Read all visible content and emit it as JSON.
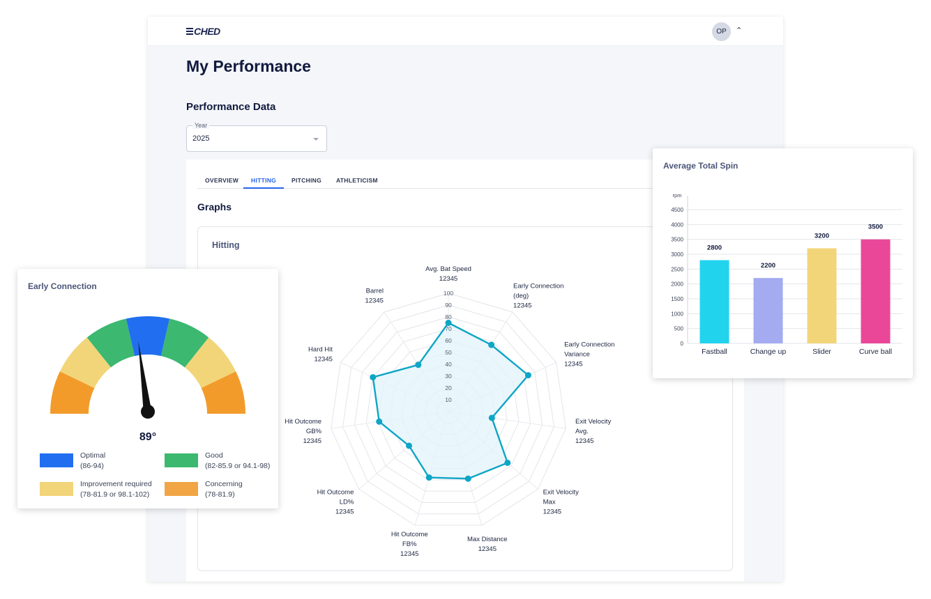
{
  "header": {
    "logo_text": "CHED",
    "avatar_initials": "OP"
  },
  "page": {
    "title": "My Performance",
    "section_title": "Performance Data"
  },
  "year_select": {
    "label": "Year",
    "value": "2025"
  },
  "tabs": [
    {
      "label": "OVERVIEW",
      "active": false
    },
    {
      "label": "HITTING",
      "active": true
    },
    {
      "label": "PITCHING",
      "active": false
    },
    {
      "label": "ATHLETICISM",
      "active": false
    }
  ],
  "graphs": {
    "title": "Graphs",
    "card_title": "Hitting"
  },
  "radar_chart": {
    "chart_data": {
      "type": "radar",
      "title": "Hitting",
      "r_ticks": [
        10,
        20,
        30,
        40,
        50,
        60,
        70,
        80,
        90,
        100
      ],
      "r_range": [
        0,
        100
      ],
      "axes": [
        {
          "label": [
            "Avg. Bat Speed",
            "12345"
          ],
          "value": 75
        },
        {
          "label": [
            "Early Connection",
            "(deg)",
            "12345"
          ],
          "value": 67
        },
        {
          "label": [
            "Early Connection",
            "Variance",
            "12345"
          ],
          "value": 74
        },
        {
          "label": [
            "Exit Velocity",
            "Avg.",
            "12345"
          ],
          "value": 37
        },
        {
          "label": [
            "Exit Velocity",
            "Max",
            "12345"
          ],
          "value": 66
        },
        {
          "label": [
            "Max Distance",
            "12345"
          ],
          "value": 59
        },
        {
          "label": [
            "Hit Outcome",
            "FB%",
            "12345"
          ],
          "value": 58
        },
        {
          "label": [
            "Hit Outcome",
            "LD%",
            "12345"
          ],
          "value": 44
        },
        {
          "label": [
            "Hit Outcome",
            "GB%",
            "12345"
          ],
          "value": 59
        },
        {
          "label": [
            "Hard Hit",
            "12345"
          ],
          "value": 70
        },
        {
          "label": [
            "Barrel",
            "12345"
          ],
          "value": 47
        }
      ],
      "line_color": "#0ea5c6",
      "fill_color": "#e3f4fa"
    }
  },
  "gauge": {
    "title": "Early Connection",
    "value_text": "89°",
    "value": 89,
    "scale_min": 78,
    "scale_max": 102,
    "segments": [
      {
        "color": "#f29b2b"
      },
      {
        "color": "#f2d579"
      },
      {
        "color": "#3cb870"
      },
      {
        "color": "#216ff0"
      },
      {
        "color": "#3cb870"
      },
      {
        "color": "#f2d579"
      },
      {
        "color": "#f29b2b"
      }
    ],
    "legend": [
      {
        "name": "Optimal",
        "range": "(86-94)",
        "color": "#216ff0"
      },
      {
        "name": "Good",
        "range": "(82-85.9 or 94.1-98)",
        "color": "#3cb870"
      },
      {
        "name": "Improvement required",
        "range": "(78-81.9 or 98.1-102)",
        "color": "#f2d579"
      },
      {
        "name": "Concerning",
        "range": "(78-81.9)",
        "color": "#f1a545"
      }
    ]
  },
  "spin_chart": {
    "title": "Average Total Spin",
    "chart_data": {
      "type": "bar",
      "title": "Average Total Spin",
      "ylabel": "rpm",
      "ylim": [
        0,
        4500
      ],
      "y_ticks": [
        0,
        500,
        1000,
        1500,
        2000,
        2500,
        3000,
        3500,
        4000,
        4500
      ],
      "categories": [
        "Fastball",
        "Change up",
        "Slider",
        "Curve ball"
      ],
      "values": [
        2800,
        2200,
        3200,
        3500
      ],
      "colors": [
        "#22d3ee",
        "#a5abf0",
        "#f2d579",
        "#ea4799"
      ],
      "grid": true
    }
  }
}
